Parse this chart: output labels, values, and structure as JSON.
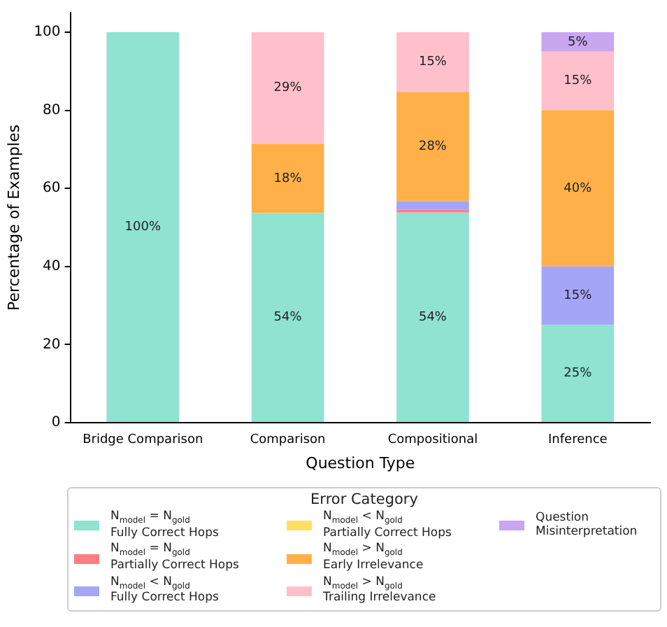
{
  "chart_data": {
    "type": "bar",
    "stacked": true,
    "xlabel": "Question Type",
    "ylabel": "Percentage of Examples",
    "legend_title": "Error Category",
    "legend": "bottom",
    "grid": false,
    "categories": [
      "Bridge Comparison",
      "Comparison",
      "Compositional",
      "Inference"
    ],
    "ylim": [
      0,
      105
    ],
    "yticks": [
      0,
      20,
      40,
      60,
      80,
      100
    ],
    "series": [
      {
        "name": "N$_{model}$ = N$_{gold}$\nFully Correct Hops",
        "color": "#8fe3d0",
        "values": [
          100,
          53.7,
          53.8,
          25
        ],
        "value_labels": [
          "100%",
          "54%",
          "54%",
          "25%"
        ]
      },
      {
        "name": "N$_{model}$ = N$_{gold}$\nPartially Correct Hops",
        "color": "#fd7f86",
        "values": [
          0,
          0,
          0.7,
          0
        ],
        "value_labels": [
          null,
          null,
          null,
          null
        ]
      },
      {
        "name": "N$_{model}$ < N$_{gold}$\nFully Correct Hops",
        "color": "#a5a5f8",
        "values": [
          0,
          0,
          2.2,
          15
        ],
        "value_labels": [
          null,
          null,
          null,
          "15%"
        ]
      },
      {
        "name": "N$_{model}$ < N$_{gold}$\nPartially Correct Hops",
        "color": "#ffe066",
        "values": [
          0,
          0,
          0,
          0
        ],
        "value_labels": [
          null,
          null,
          null,
          null
        ]
      },
      {
        "name": "N$_{model}$ > N$_{gold}$\nEarly Irrelevance",
        "color": "#ffb048",
        "values": [
          0,
          17.7,
          28,
          40
        ],
        "value_labels": [
          null,
          "18%",
          "28%",
          "40%"
        ]
      },
      {
        "name": "N$_{model}$ > N$_{gold}$\nTrailing Irrelevance",
        "color": "#ffc0cb",
        "values": [
          0,
          28.6,
          15.3,
          15
        ],
        "value_labels": [
          null,
          "29%",
          "15%",
          "15%"
        ]
      },
      {
        "name": "Question\nMisinterpretation",
        "color": "#c8a6f0",
        "values": [
          0,
          0,
          0,
          5
        ],
        "value_labels": [
          null,
          null,
          null,
          "5%"
        ]
      }
    ]
  }
}
